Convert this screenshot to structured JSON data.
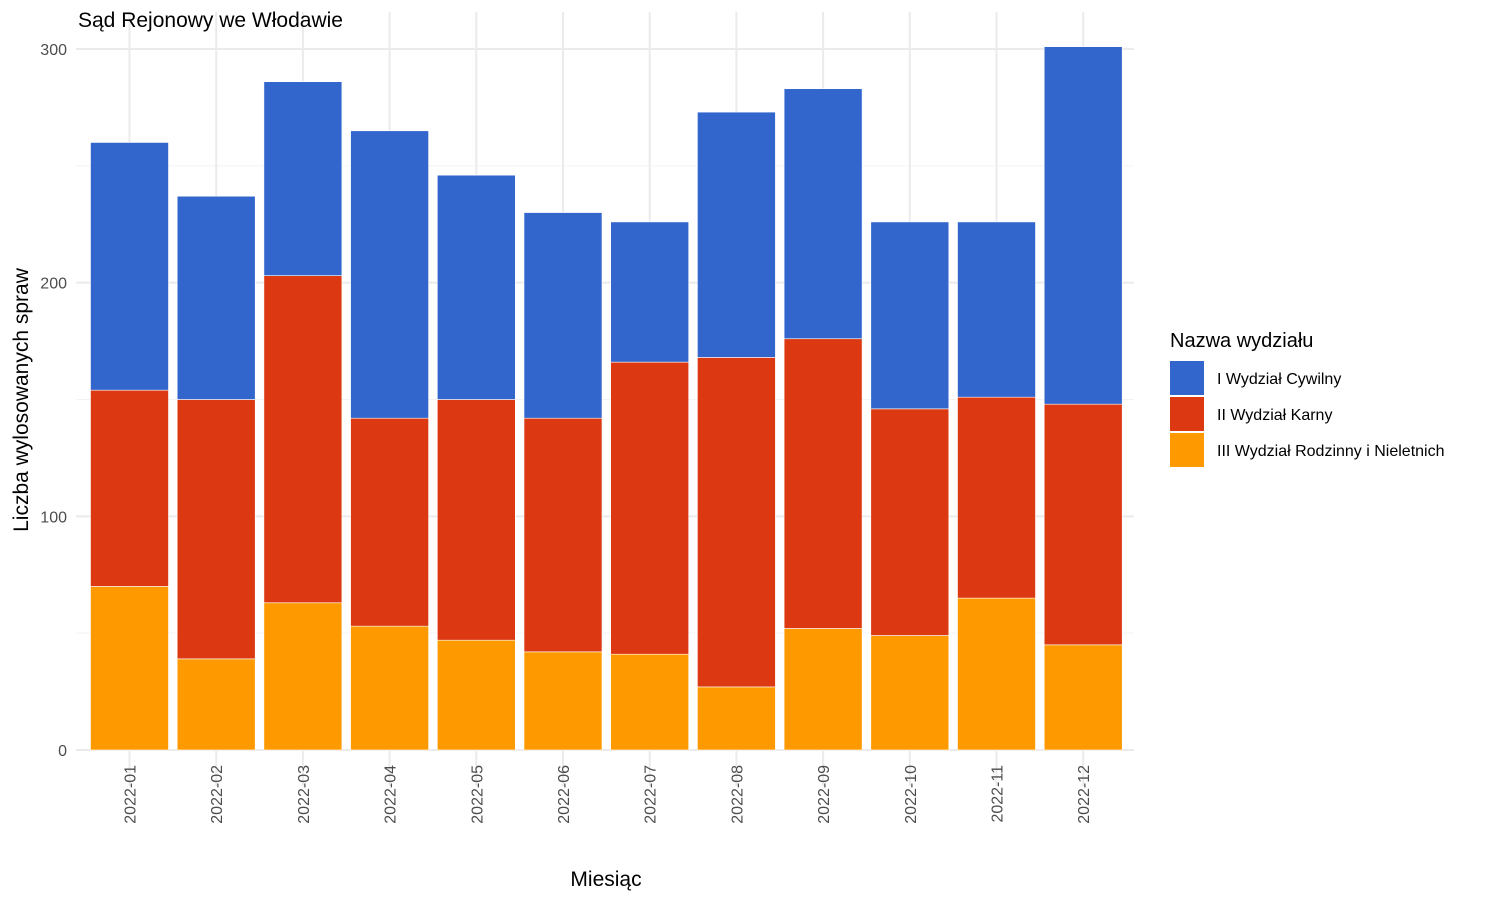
{
  "chart_data": {
    "type": "bar",
    "stacked": true,
    "title": "Sąd Rejonowy we Włodawie",
    "xlabel": "Miesiąc",
    "ylabel": "Liczba wylosowanych spraw",
    "ylim": [
      0,
      300
    ],
    "yticks": [
      0,
      100,
      200,
      300
    ],
    "grid": true,
    "legend": {
      "title": "Nazwa wydziału",
      "placement": "right"
    },
    "categories": [
      "2022-01",
      "2022-02",
      "2022-03",
      "2022-04",
      "2022-05",
      "2022-06",
      "2022-07",
      "2022-08",
      "2022-09",
      "2022-10",
      "2022-11",
      "2022-12"
    ],
    "series": [
      {
        "name": "III Wydział Rodzinny i Nieletnich",
        "color": "#ff9900",
        "values": [
          70,
          39,
          63,
          53,
          47,
          42,
          41,
          27,
          52,
          49,
          65,
          45
        ]
      },
      {
        "name": "II Wydział Karny",
        "color": "#dc3912",
        "values": [
          84,
          111,
          140,
          89,
          103,
          100,
          125,
          141,
          124,
          97,
          86,
          103
        ]
      },
      {
        "name": "I Wydział Cywilny",
        "color": "#3366cc",
        "values": [
          106,
          87,
          83,
          123,
          96,
          88,
          60,
          105,
          107,
          80,
          75,
          153
        ]
      }
    ],
    "legend_order": [
      "I Wydział Cywilny",
      "II Wydział Karny",
      "III Wydział Rodzinny i Nieletnich"
    ]
  }
}
